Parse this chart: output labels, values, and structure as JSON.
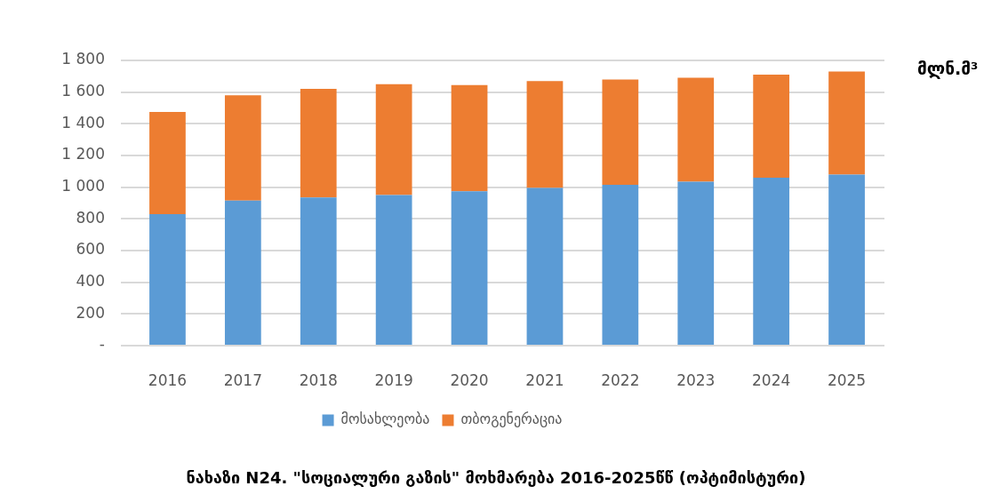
{
  "chart_data": {
    "type": "bar",
    "stacked": true,
    "title": "ნახაზი N24. \"სოციალური გაზის\" მოხმარება 2016-2025წწ (ოპტიმისტური)",
    "ylabel": "მლნ.მ³",
    "categories": [
      "2016",
      "2017",
      "2018",
      "2019",
      "2020",
      "2021",
      "2022",
      "2023",
      "2024",
      "2025"
    ],
    "series": [
      {
        "name": "მოსახლეობა",
        "color": "#5b9bd5",
        "values": [
          830,
          915,
          935,
          950,
          975,
          995,
          1015,
          1035,
          1060,
          1080
        ]
      },
      {
        "name": "თბოგენერაცია",
        "color": "#ed7d31",
        "values": [
          645,
          665,
          685,
          700,
          670,
          675,
          665,
          655,
          650,
          650
        ]
      }
    ],
    "ylim": [
      0,
      1800
    ],
    "yticks": [
      {
        "value": 0,
        "label": "-"
      },
      200,
      400,
      600,
      800,
      {
        "value": 1000,
        "label": "1 000"
      },
      {
        "value": 1200,
        "label": "1 200"
      },
      {
        "value": 1400,
        "label": "1 400"
      },
      {
        "value": 1600,
        "label": "1 600"
      },
      {
        "value": 1800,
        "label": "1 800"
      }
    ],
    "grid": "y",
    "legend": "bottom"
  }
}
